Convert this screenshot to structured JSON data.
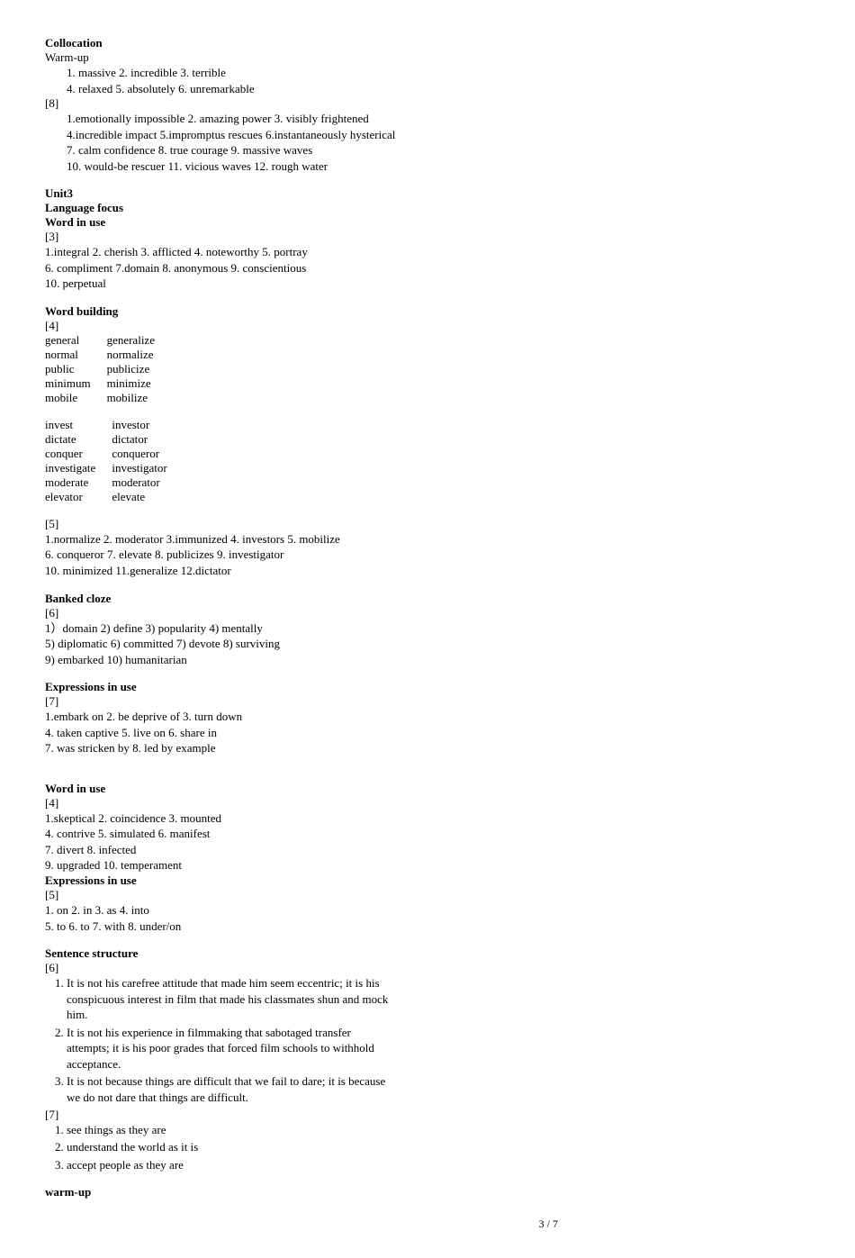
{
  "collocation": {
    "title": "Collocation",
    "warmup_label": "Warm-up",
    "warmup_l1": "1.   massive  2. incredible  3. terrible",
    "warmup_l2": "4. relaxed   5. absolutely  6. unremarkable",
    "ex8_label": "[8]",
    "ex8_l1": "1.emotionally impossible  2. amazing power  3. visibly frightened",
    "ex8_l2": "4.incredible impact    5.impromptus rescues  6.instantaneously hysterical",
    "ex8_l3": "7. calm confidence    8. true courage  9. massive waves",
    "ex8_l4": "10. would-be rescuer  11. vicious waves  12. rough water"
  },
  "unit3": {
    "title": "Unit3",
    "lang_focus": "Language focus",
    "word_use": "Word in use",
    "ex3_label": "[3]",
    "ex3_l1": "1.integral  2. cherish  3. afflicted  4. noteworthy  5. portray",
    "ex3_l2": "6. compliment  7.domain  8. anonymous  9. conscientious",
    "ex3_l3": "10. perpetual",
    "word_building": "Word building",
    "ex4_label": "[4]",
    "pairs_a": [
      [
        "general",
        "generalize"
      ],
      [
        "normal",
        "normalize"
      ],
      [
        "public",
        "publicize"
      ],
      [
        "minimum",
        "minimize"
      ],
      [
        "mobile",
        "mobilize"
      ]
    ],
    "pairs_b": [
      [
        "invest",
        "investor"
      ],
      [
        "dictate",
        "dictator"
      ],
      [
        "conquer",
        "conqueror"
      ],
      [
        "investigate",
        "investigator"
      ],
      [
        "moderate",
        "moderator"
      ],
      [
        "elevator",
        "elevate"
      ]
    ],
    "ex5_label": "[5]",
    "ex5_l1": "1.normalize  2. moderator  3.immunized  4. investors  5. mobilize",
    "ex5_l2": "6. conqueror   7. elevate  8. publicizes  9. investigator",
    "ex5_l3": "10. minimized  11.generalize  12.dictator",
    "banked_cloze": "Banked cloze",
    "ex6_label": "[6]",
    "ex6_l1": "1）domain   2) define   3) popularity 4) mentally",
    "ex6_l2": "5) diplomatic  6) committed  7) devote  8) surviving",
    "ex6_l3": "9) embarked   10) humanitarian",
    "expr_use": "Expressions in use",
    "ex7_label": "[7]",
    "ex7_l1": "1.embark on   2. be deprive of   3. turn down",
    "ex7_l2": "4. taken captive  5. live on   6. share in",
    "ex7_l3": "7. was stricken by  8. led by example"
  },
  "block2": {
    "word_use": "Word in use",
    "ex4_label": "[4]",
    "ex4_l1": "1.skeptical   2. coincidence  3. mounted",
    "ex4_l2": "4. contrive  5. simulated  6. manifest",
    "ex4_l3": "7. divert    8. infected",
    "ex4_l4": "9. upgraded  10. temperament",
    "expr_use": "Expressions in use",
    "ex5_label": "[5]",
    "ex5_l1": "1.   on  2.  in  3.  as  4. into",
    "ex5_l2": "5.  to   6. to  7. with  8. under/on",
    "sent_struct": "Sentence structure",
    "ex6_label": "[6]",
    "s1": "It is not his carefree attitude that made him seem eccentric; it is his conspicuous interest in film that made his classmates shun and mock him.",
    "s2": "It is not his experience in filmmaking that sabotaged transfer attempts; it is his poor grades that forced film schools to withhold acceptance.",
    "s3": "It is not because things are difficult that we fail to dare; it is because we do not dare that things are difficult.",
    "ex7_label": "[7]",
    "s7_1": "see things as they are",
    "s7_2": "understand the world as it is",
    "s7_3": "accept people as they are",
    "warmup": "warm-up"
  },
  "page_number": "3 / 7"
}
